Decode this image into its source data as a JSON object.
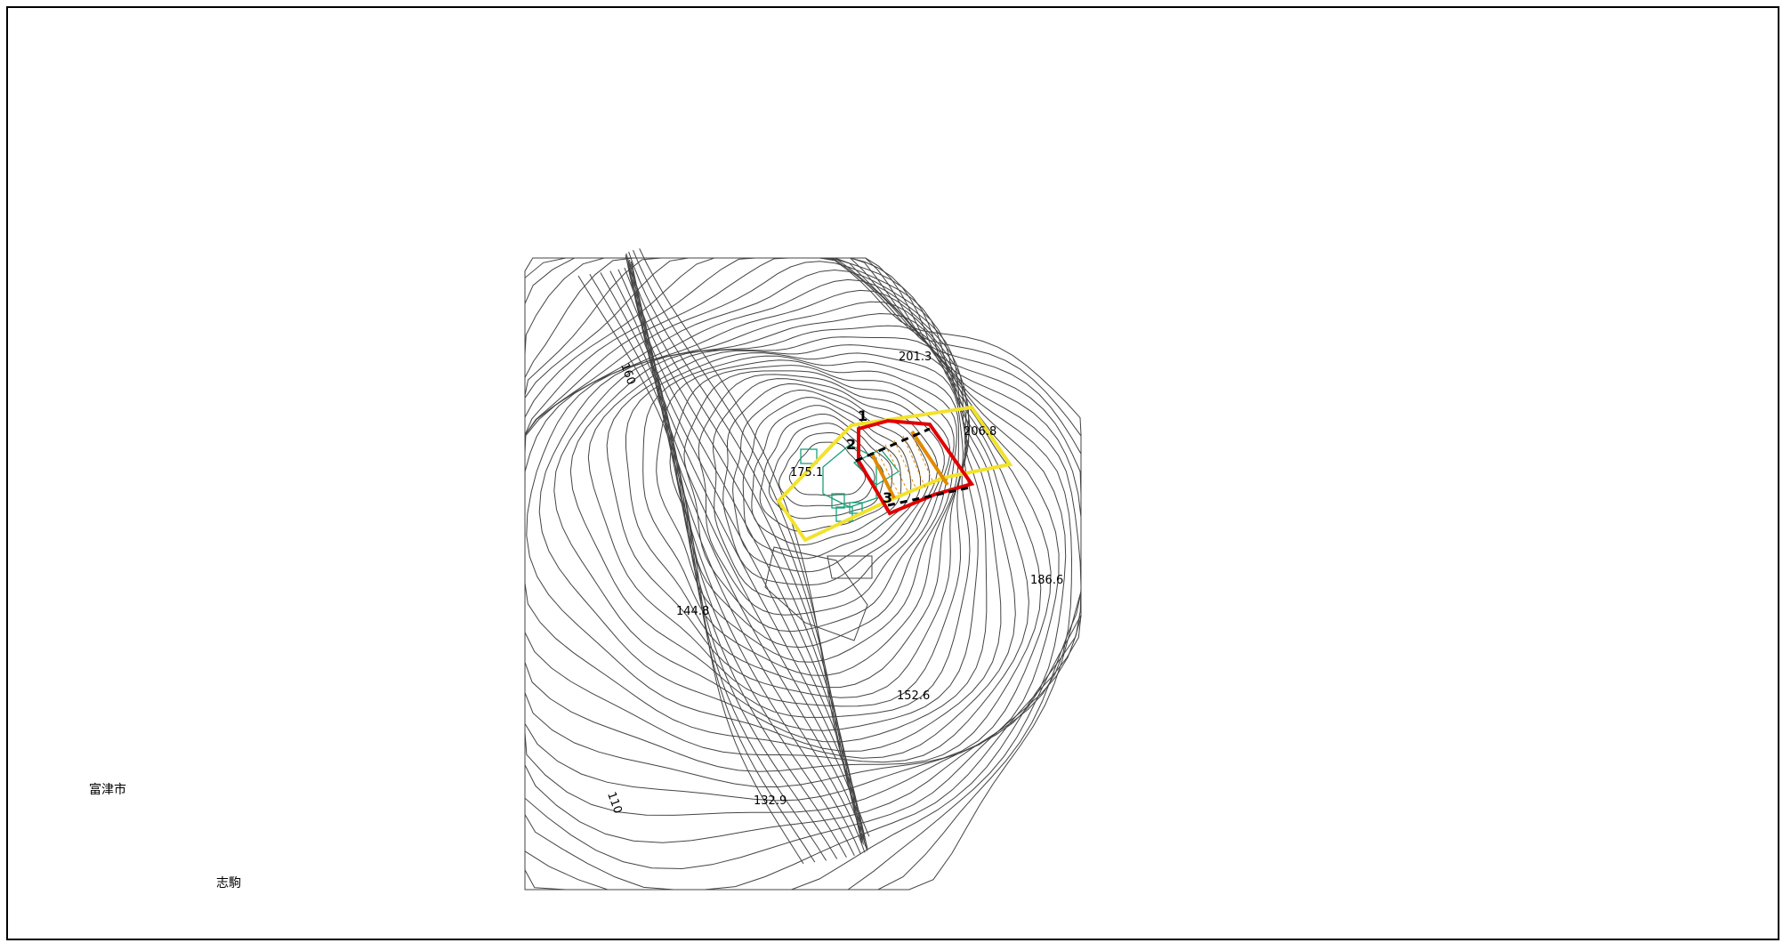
{
  "map": {
    "places": [
      "富津市",
      "志駒"
    ],
    "spot_heights": [
      "201.3",
      "206.8",
      "175.1",
      "186.6",
      "144.8",
      "152.6",
      "132.9"
    ],
    "contour_labels": [
      "160",
      "110"
    ],
    "boundary_points": [
      "1",
      "2",
      "3"
    ],
    "colors": {
      "contour": "#444444",
      "zone_outer": "#f2e22b",
      "zone_red": "#e00000",
      "zone_orange": "#e08a00",
      "building": "#1aa07a",
      "frame": "#000000"
    }
  }
}
